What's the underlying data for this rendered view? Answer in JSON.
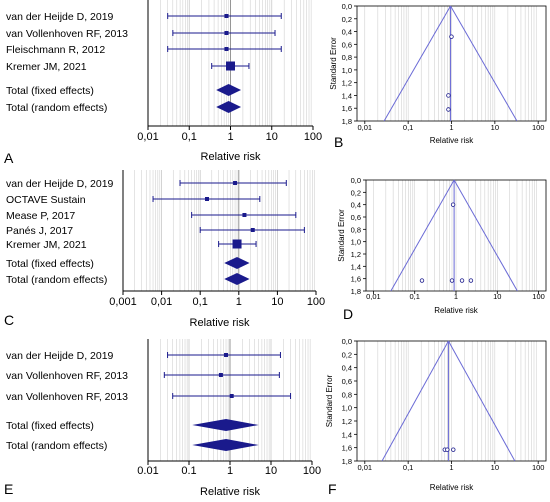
{
  "panels": [
    {
      "letter": "A"
    },
    {
      "letter": "B"
    },
    {
      "letter": "C"
    },
    {
      "letter": "D"
    },
    {
      "letter": "E"
    },
    {
      "letter": "F"
    }
  ],
  "colors": {
    "mark": "#1a1a8c",
    "funnel": "#6b6bd6",
    "grid": "#c8c8c8",
    "axis": "#000000"
  },
  "chart_data": [
    {
      "panel": "A",
      "type": "forest",
      "scale": "log",
      "xlabel": "Relative risk",
      "xticks": [
        "0,01",
        "0,1",
        "1",
        "10",
        "100"
      ],
      "xlim": [
        0.01,
        100
      ],
      "rows": [
        {
          "label": "van der Heijde D, 2019",
          "rr": 0.8,
          "lo": 0.03,
          "hi": 17
        },
        {
          "label": "van Vollenhoven RF, 2013",
          "rr": 0.8,
          "lo": 0.04,
          "hi": 12
        },
        {
          "label": "Fleischmann R,  2012",
          "rr": 0.8,
          "lo": 0.03,
          "hi": 17
        },
        {
          "label": "Kremer JM,  2021",
          "rr": 1.0,
          "lo": 0.35,
          "hi": 2.8
        },
        {
          "label": "Total (fixed effects)",
          "rr": 0.9,
          "lo": 0.45,
          "hi": 1.8,
          "pooled": true
        },
        {
          "label": "Total (random effects)",
          "rr": 0.9,
          "lo": 0.45,
          "hi": 1.8,
          "pooled": true
        }
      ]
    },
    {
      "panel": "B",
      "type": "funnel",
      "scale": "log",
      "xlabel": "Relative risk",
      "ylabel": "Standard Error",
      "xticks": [
        "0,01",
        "0,1",
        "1",
        "10",
        "100"
      ],
      "yticks": [
        "0,0",
        "0,2",
        "0,4",
        "0,6",
        "0,8",
        "1,0",
        "1,2",
        "1,4",
        "1,6",
        "1,8"
      ],
      "pooled": 0.95,
      "ylim": [
        0,
        1.8
      ],
      "points": [
        {
          "x": 1.0,
          "se": 0.48
        },
        {
          "x": 0.85,
          "se": 1.4
        },
        {
          "x": 0.85,
          "se": 1.62
        }
      ]
    },
    {
      "panel": "C",
      "type": "forest",
      "scale": "log",
      "xlabel": "Relative risk",
      "xticks": [
        "0,001",
        "0,01",
        "0,1",
        "1",
        "10",
        "100"
      ],
      "xlim": [
        0.001,
        100
      ],
      "rows": [
        {
          "label": "van der Heijde D, 2019",
          "rr": 0.8,
          "lo": 0.03,
          "hi": 17
        },
        {
          "label": "OCTAVE Sustain",
          "rr": 0.15,
          "lo": 0.006,
          "hi": 3.5
        },
        {
          "label": "Mease P, 2017",
          "rr": 1.4,
          "lo": 0.06,
          "hi": 30
        },
        {
          "label": "Panés J, 2017",
          "rr": 2.3,
          "lo": 0.1,
          "hi": 50
        },
        {
          "label": "Kremer JM,  2021",
          "rr": 0.9,
          "lo": 0.3,
          "hi": 2.8
        },
        {
          "label": "Total (fixed effects)",
          "rr": 0.9,
          "lo": 0.42,
          "hi": 1.9,
          "pooled": true
        },
        {
          "label": "Total (random effects)",
          "rr": 0.9,
          "lo": 0.42,
          "hi": 1.9,
          "pooled": true
        }
      ]
    },
    {
      "panel": "D",
      "type": "funnel",
      "scale": "log",
      "xlabel": "Relative risk",
      "ylabel": "Standard Error",
      "xticks": [
        "0,01",
        "0,1",
        "1",
        "10",
        "100"
      ],
      "yticks": [
        "0,0",
        "0,2",
        "0,4",
        "0,6",
        "0,8",
        "1,0",
        "1,2",
        "1,4",
        "1,6",
        "1,8"
      ],
      "pooled": 0.9,
      "ylim": [
        0,
        1.8
      ],
      "points": [
        {
          "x": 0.85,
          "se": 0.4
        },
        {
          "x": 0.15,
          "se": 1.63
        },
        {
          "x": 0.8,
          "se": 1.63
        },
        {
          "x": 1.4,
          "se": 1.63
        },
        {
          "x": 2.3,
          "se": 1.63
        }
      ]
    },
    {
      "panel": "E",
      "type": "forest",
      "scale": "log",
      "xlabel": "Relative risk",
      "xticks": [
        "0.01",
        "0.1",
        "1",
        "10",
        "100"
      ],
      "xlim": [
        0.01,
        100
      ],
      "rows": [
        {
          "label": "van der Heijde D, 2019",
          "rr": 0.8,
          "lo": 0.03,
          "hi": 17
        },
        {
          "label": "van Vollenhoven RF, 2013",
          "rr": 0.6,
          "lo": 0.025,
          "hi": 16
        },
        {
          "label": "van Vollenhoven RF, 2013",
          "rr": 1.1,
          "lo": 0.04,
          "hi": 30
        },
        {
          "label": "Total (fixed effects)",
          "rr": 0.8,
          "lo": 0.12,
          "hi": 5,
          "pooled": true
        },
        {
          "label": "Total (random effects)",
          "rr": 0.8,
          "lo": 0.12,
          "hi": 5,
          "pooled": true
        }
      ]
    },
    {
      "panel": "F",
      "type": "funnel",
      "scale": "log",
      "xlabel": "Relative risk",
      "ylabel": "Standard Error",
      "xticks": [
        "0,01",
        "0,1",
        "1",
        "10",
        "100"
      ],
      "yticks": [
        "0,0",
        "0,2",
        "0,4",
        "0,6",
        "0,8",
        "1,0",
        "1,2",
        "1,4",
        "1,6",
        "1,8"
      ],
      "pooled": 0.85,
      "ylim": [
        0,
        1.8
      ],
      "points": [
        {
          "x": 0.7,
          "se": 1.63
        },
        {
          "x": 0.8,
          "se": 1.63
        },
        {
          "x": 1.1,
          "se": 1.63
        }
      ]
    }
  ]
}
